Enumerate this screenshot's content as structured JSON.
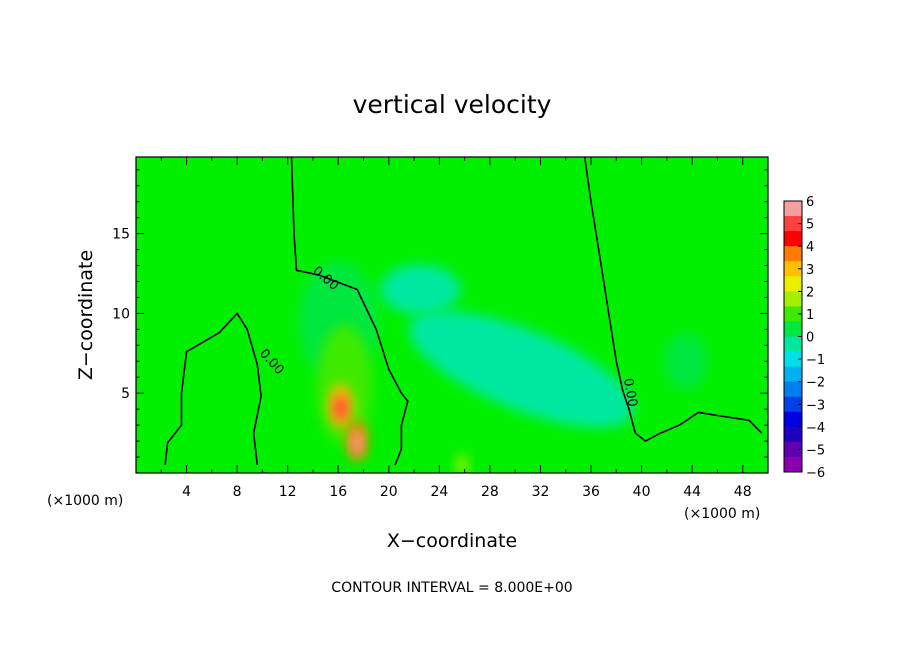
{
  "chart_data": {
    "type": "heatmap",
    "title": "vertical velocity",
    "xlabel": "X−coordinate",
    "ylabel": "Z−coordinate",
    "x_unit_left": "(×1000 m)",
    "x_unit_right": "(×1000 m)",
    "footer": "CONTOUR INTERVAL = 8.000E+00",
    "xlim": [
      0,
      50
    ],
    "ylim": [
      0,
      19.8
    ],
    "x_ticks": [
      4,
      8,
      12,
      16,
      20,
      24,
      28,
      32,
      36,
      40,
      44,
      48
    ],
    "y_ticks": [
      5,
      10,
      15
    ],
    "contour_label": "0.00",
    "colorbar": {
      "ticks": [
        "6",
        "5",
        "4",
        "3",
        "2",
        "1",
        "0",
        "−1",
        "−2",
        "−3",
        "−4",
        "−5",
        "−6"
      ],
      "colors": [
        "#f5a0a0",
        "#ff4040",
        "#ff0000",
        "#ff7a00",
        "#ffc000",
        "#e8f000",
        "#a6ef00",
        "#3eea00",
        "#00e840",
        "#00e8a0",
        "#00e0e8",
        "#00b0f0",
        "#0080f0",
        "#0040e8",
        "#0000e0",
        "#2000c0",
        "#6000b0",
        "#8a00b0"
      ]
    },
    "background_value": 0,
    "features": [
      {
        "name": "updraft-core-lower",
        "x": 17.5,
        "z": 2.0,
        "w": 4.0
      },
      {
        "name": "updraft-core-upper",
        "x": 16.2,
        "z": 4.2,
        "w": 3.0
      },
      {
        "name": "updraft-envelope",
        "x": 16.5,
        "z": 5.5,
        "w": 0.7
      },
      {
        "name": "updraft-upper-plume",
        "x": 16.0,
        "z": 9.5,
        "w": 0.35
      },
      {
        "name": "downdraft-band",
        "x": 30.5,
        "z": 6.5,
        "w": -0.6
      },
      {
        "name": "downdraft-upper",
        "x": 22.5,
        "z": 11.5,
        "w": -0.3
      },
      {
        "name": "updraft-right",
        "x": 43.5,
        "z": 7.0,
        "w": 0.4
      },
      {
        "name": "surface-updraft",
        "x": 25.8,
        "z": 0.5,
        "w": 1.6
      }
    ],
    "zero_contours": [
      {
        "name": "left",
        "points": [
          [
            9.6,
            0.5
          ],
          [
            9.3,
            2.5
          ],
          [
            9.9,
            4.8
          ],
          [
            9.6,
            6.8
          ],
          [
            8.8,
            9.0
          ],
          [
            8.0,
            10.0
          ],
          [
            6.6,
            8.8
          ],
          [
            4.0,
            7.6
          ],
          [
            3.6,
            5.0
          ],
          [
            3.6,
            3.0
          ],
          [
            2.5,
            1.9
          ],
          [
            2.3,
            0.5
          ]
        ]
      },
      {
        "name": "middle",
        "points": [
          [
            12.3,
            19.8
          ],
          [
            12.5,
            15.0
          ],
          [
            12.7,
            12.7
          ],
          [
            14.5,
            12.4
          ],
          [
            17.5,
            11.5
          ],
          [
            19.0,
            9.0
          ],
          [
            20.0,
            6.5
          ],
          [
            21.0,
            5.0
          ],
          [
            21.5,
            4.5
          ],
          [
            21.0,
            3.0
          ],
          [
            21.0,
            1.5
          ],
          [
            20.5,
            0.5
          ]
        ]
      },
      {
        "name": "right",
        "points": [
          [
            35.5,
            19.8
          ],
          [
            36.0,
            17.0
          ],
          [
            36.8,
            13.0
          ],
          [
            37.5,
            9.5
          ],
          [
            38.0,
            7.0
          ],
          [
            38.5,
            5.2
          ],
          [
            39.0,
            4.0
          ],
          [
            39.5,
            2.5
          ],
          [
            40.3,
            2.0
          ],
          [
            41.5,
            2.5
          ],
          [
            43.0,
            3.0
          ],
          [
            44.5,
            3.8
          ],
          [
            46.0,
            3.6
          ],
          [
            48.5,
            3.3
          ],
          [
            49.5,
            2.5
          ]
        ]
      }
    ]
  }
}
